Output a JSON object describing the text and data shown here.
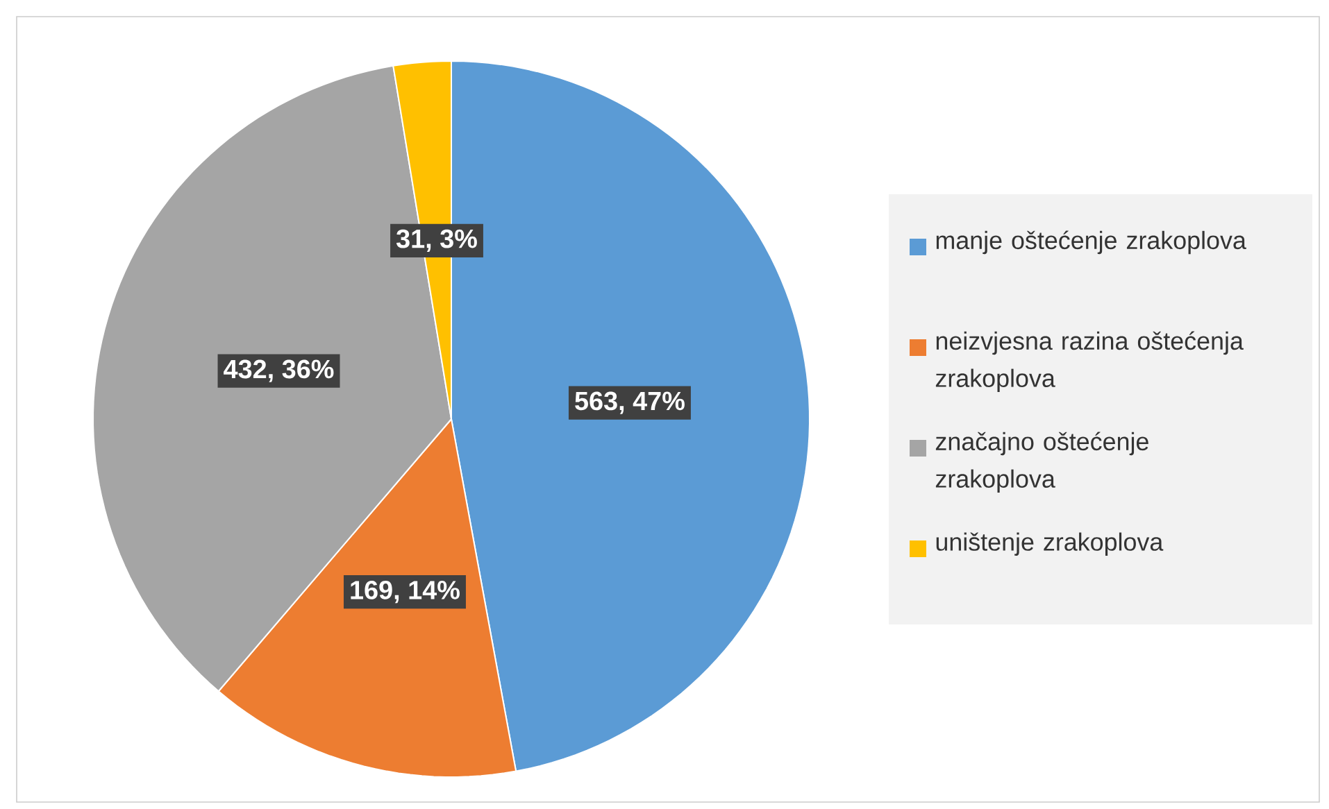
{
  "chart_data": {
    "type": "pie",
    "categories": [
      "manje oštećenje zrakoplova",
      "neizvjesna razina oštećenja zrakoplova",
      "značajno oštećenje zrakoplova",
      "uništenje zrakoplova"
    ],
    "values": [
      563,
      169,
      432,
      31
    ],
    "colors": [
      "#5b9bd5",
      "#ed7d31",
      "#a5a5a5",
      "#ffc000"
    ],
    "value_labels": [
      "563, 47%",
      "169, 14%",
      "432, 36%",
      "31, 3%"
    ],
    "legend": "right"
  }
}
